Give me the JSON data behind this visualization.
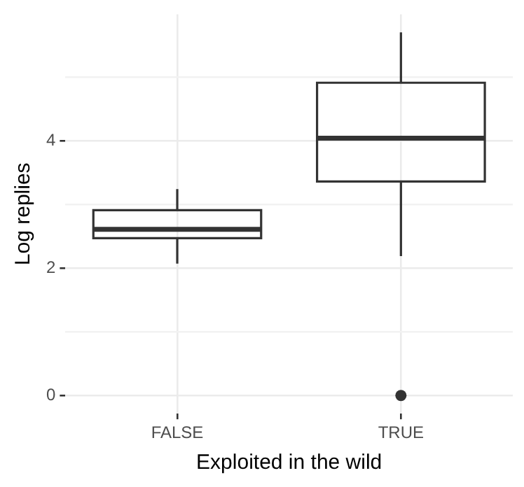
{
  "chart_data": {
    "type": "box",
    "xlabel": "Exploited in the wild",
    "ylabel": "Log replies",
    "categories": [
      "FALSE",
      "TRUE"
    ],
    "color": "#333333",
    "boxes": [
      {
        "low": 2.07,
        "q1": 2.47,
        "median": 2.61,
        "q3": 2.91,
        "high": 3.24
      },
      {
        "low": 2.19,
        "q1": 3.36,
        "median": 4.04,
        "q3": 4.91,
        "high": 5.7,
        "outliers": [
          0
        ]
      }
    ],
    "ylim": [
      -0.285,
      5.985
    ],
    "yticks": [
      0,
      {
        "value": 1,
        "label": null
      },
      2,
      {
        "value": 3,
        "label": null
      },
      4,
      {
        "value": 5,
        "label": null
      }
    ],
    "grid": true
  }
}
